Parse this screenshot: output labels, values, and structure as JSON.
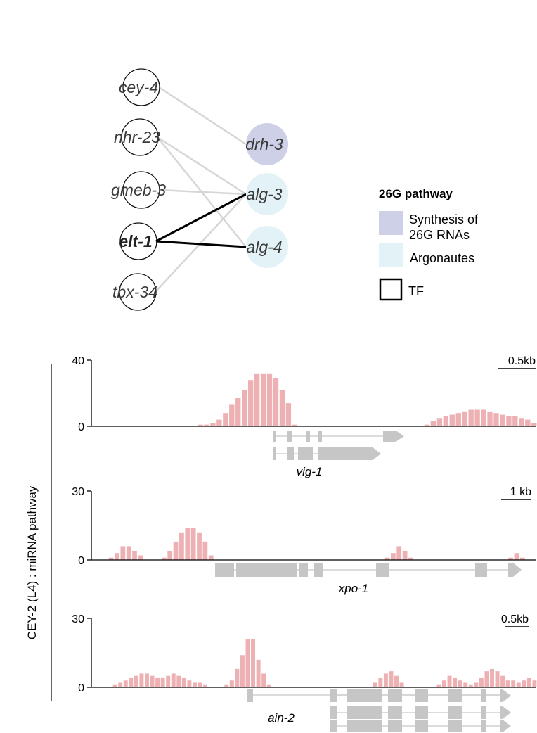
{
  "network": {
    "tf_nodes": [
      "cey-4",
      "nhr-23",
      "gmeb-3",
      "elt-1",
      "tbx-34"
    ],
    "target_nodes": [
      {
        "name": "drh-3",
        "category": "synthesis"
      },
      {
        "name": "alg-3",
        "category": "argonaute"
      },
      {
        "name": "alg-4",
        "category": "argonaute"
      }
    ],
    "edges": [
      {
        "from": "cey-4",
        "to": "drh-3",
        "strong": false
      },
      {
        "from": "nhr-23",
        "to": "alg-3",
        "strong": false
      },
      {
        "from": "nhr-23",
        "to": "alg-4",
        "strong": false
      },
      {
        "from": "gmeb-3",
        "to": "alg-3",
        "strong": false
      },
      {
        "from": "tbx-34",
        "to": "alg-3",
        "strong": false
      },
      {
        "from": "elt-1",
        "to": "alg-3",
        "strong": true
      },
      {
        "from": "elt-1",
        "to": "alg-4",
        "strong": true
      }
    ],
    "bold_nodes": [
      "elt-1"
    ],
    "colors": {
      "synthesis": "#cdd0e6",
      "argonaute": "#e3f2f7",
      "weak_edge": "#d6d6d6",
      "strong_edge": "#000000"
    }
  },
  "legend": {
    "title": "26G pathway",
    "items": [
      {
        "lines": [
          "Synthesis of",
          "26G RNAs"
        ],
        "type": "synthesis"
      },
      {
        "lines": [
          "Argonautes"
        ],
        "type": "argonaute"
      },
      {
        "lines": [
          "TF"
        ],
        "type": "tf"
      }
    ]
  },
  "tracks": {
    "ylabel": "CEY-2 (L4) : miRNA pathway",
    "bar_color": "#eeb1b3",
    "gene_color": "#c6c6c6",
    "panels": [
      {
        "gene": "vig-1",
        "ymax": 40,
        "ymax_label": "40",
        "ymin_label": "0",
        "scale": "0.5kb",
        "values": [
          0,
          0,
          0,
          0,
          0,
          0,
          0,
          0,
          0,
          0,
          0,
          0,
          0,
          0,
          0,
          0,
          1,
          1,
          2,
          4,
          8,
          13,
          17,
          22,
          28,
          32,
          32,
          32,
          29,
          22,
          14,
          1,
          0,
          0,
          0,
          0,
          0,
          0,
          0,
          0,
          0,
          0,
          0,
          0,
          0,
          0,
          0,
          0,
          0,
          0,
          0,
          0,
          1,
          3,
          5,
          6,
          7,
          8,
          9,
          10,
          10,
          10,
          9,
          8,
          7,
          6,
          6,
          5,
          4,
          2
        ]
      },
      {
        "gene": "xpo-1",
        "ymax": 30,
        "ymax_label": "30",
        "ymin_label": "0",
        "scale": "1 kb",
        "values": [
          0,
          0,
          1,
          3,
          6,
          6,
          4,
          2,
          0,
          0,
          0,
          1,
          4,
          8,
          12,
          14,
          14,
          12,
          8,
          2,
          0,
          0,
          0,
          0,
          0,
          0,
          0,
          0,
          0,
          0,
          0,
          0,
          0,
          0,
          0,
          0,
          0,
          0,
          0,
          0,
          0,
          0,
          0,
          0,
          0,
          0,
          0,
          0,
          0,
          1,
          3,
          6,
          4,
          1,
          0,
          0,
          0,
          0,
          0,
          0,
          0,
          0,
          0,
          0,
          0,
          0,
          0,
          0,
          0,
          0,
          1,
          3,
          1,
          0,
          0
        ]
      },
      {
        "gene": "ain-2",
        "ymax": 30,
        "ymax_label": "30",
        "ymin_label": "0",
        "scale": "0.5kb",
        "values": [
          0,
          0,
          0,
          1,
          2,
          3,
          4,
          5,
          6,
          6,
          5,
          4,
          4,
          5,
          6,
          5,
          4,
          3,
          2,
          2,
          1,
          0,
          0,
          0,
          1,
          3,
          8,
          14,
          21,
          21,
          12,
          6,
          1,
          0,
          0,
          0,
          0,
          0,
          0,
          0,
          0,
          0,
          0,
          0,
          0,
          0,
          0,
          0,
          0,
          0,
          0,
          0,
          2,
          4,
          6,
          7,
          5,
          2,
          0,
          0,
          0,
          0,
          0,
          0,
          1,
          3,
          5,
          4,
          3,
          2,
          1,
          2,
          4,
          7,
          8,
          7,
          5,
          3,
          3,
          2,
          3,
          4,
          3
        ]
      }
    ]
  }
}
